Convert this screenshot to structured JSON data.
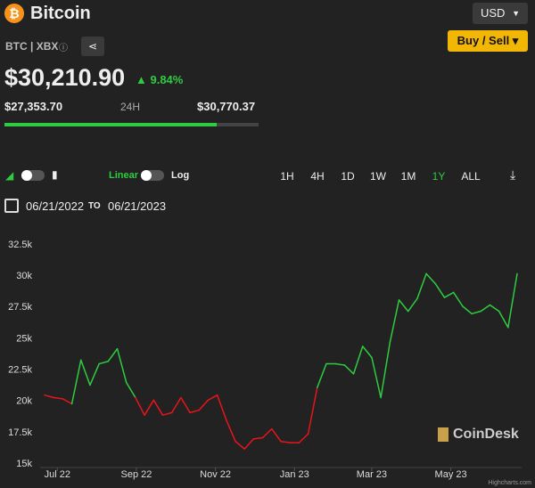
{
  "header": {
    "title": "Bitcoin",
    "currency": "USD",
    "pair": "BTC | XBX",
    "button": "Buy / Sell",
    "price": 30210.9,
    "price_label": "$30,210.90",
    "change_label": "9.84%",
    "low": 27353.7,
    "low_label": "$27,353.70",
    "period": "24H",
    "high": 30770.37,
    "high_label": "$30,770.37"
  },
  "toolbar": {
    "linear": "Linear",
    "log": "Log",
    "ranges": [
      "1H",
      "4H",
      "1D",
      "1W",
      "1M",
      "1Y",
      "ALL"
    ],
    "selected": "1Y",
    "from": "06/21/2022",
    "to_word": "TO",
    "to": "06/21/2023"
  },
  "chart_data": {
    "type": "line",
    "up_color": "#2ecc40",
    "down_color": "#e8141c",
    "values": [
      20500,
      20300,
      20200,
      19800,
      23300,
      21300,
      23000,
      23200,
      24200,
      21500,
      20300,
      18900,
      20100,
      18900,
      19100,
      20300,
      19100,
      19300,
      20100,
      20500,
      18500,
      16800,
      16200,
      17000,
      17100,
      17800,
      16800,
      16700,
      16700,
      17400,
      21100,
      23000,
      23000,
      22900,
      22200,
      24400,
      23500,
      20300,
      24700,
      28100,
      27200,
      28200,
      30200,
      29400,
      28300,
      28700,
      27600,
      27000,
      27200,
      27700,
      27200,
      25900,
      30200
    ],
    "xlim": [
      0,
      52
    ],
    "xticks": [
      {
        "value": 1.4,
        "label": "Jul 22"
      },
      {
        "value": 10.1,
        "label": "Sep 22"
      },
      {
        "value": 18.8,
        "label": "Nov 22"
      },
      {
        "value": 27.5,
        "label": "Jan 23"
      },
      {
        "value": 36,
        "label": "Mar 23"
      },
      {
        "value": 44.7,
        "label": "May 23"
      }
    ],
    "ylim": [
      15000,
      32500
    ],
    "yticks": [
      {
        "value": 15000,
        "label": "15k"
      },
      {
        "value": 17500,
        "label": "17.5k"
      },
      {
        "value": 20000,
        "label": "20k"
      },
      {
        "value": 22500,
        "label": "22.5k"
      },
      {
        "value": 25000,
        "label": "25k"
      },
      {
        "value": 27500,
        "label": "27.5k"
      },
      {
        "value": 30000,
        "label": "30k"
      },
      {
        "value": 32500,
        "label": "32.5k"
      }
    ],
    "watermark": "CoinDesk",
    "credit": "Highcharts.com"
  }
}
